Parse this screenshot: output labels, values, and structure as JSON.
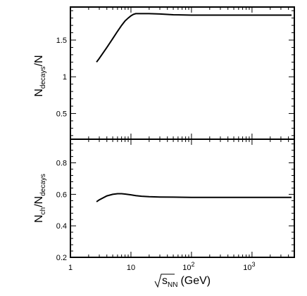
{
  "chart_data": [
    {
      "type": "line",
      "panel": "top",
      "xscale": "log",
      "xlim": [
        1,
        5000
      ],
      "ylim": [
        0.15,
        1.95
      ],
      "ylabel": {
        "main": "N",
        "sub1": "decays",
        "rest": "/N"
      },
      "yticks": [
        0.5,
        1,
        1.5
      ],
      "ytick_labels": [
        "0.5",
        "1",
        "1.5"
      ],
      "series": [
        {
          "x": [
            2.7,
            3,
            4,
            5,
            6,
            7,
            8,
            9,
            10,
            11,
            12,
            14,
            20,
            30,
            50,
            100,
            300,
            1000,
            4500
          ],
          "y": [
            1.2,
            1.25,
            1.4,
            1.52,
            1.62,
            1.7,
            1.76,
            1.8,
            1.83,
            1.85,
            1.86,
            1.86,
            1.86,
            1.855,
            1.845,
            1.84,
            1.84,
            1.84,
            1.84
          ]
        }
      ]
    },
    {
      "type": "line",
      "panel": "bottom",
      "xscale": "log",
      "xlim": [
        1,
        5000
      ],
      "ylim": [
        0.2,
        0.95
      ],
      "ylabel": {
        "main": "N",
        "sub1": "ch",
        "mid": "/N",
        "sub2": "decays"
      },
      "yticks": [
        0.2,
        0.4,
        0.6,
        0.8
      ],
      "ytick_labels": [
        "0.2",
        "0.4",
        "0.6",
        "0.8"
      ],
      "xlabel": {
        "main": "s",
        "sub": "NN",
        "rest": "(GeV)"
      },
      "xticks": [
        1,
        10,
        100,
        1000
      ],
      "xtick_labels": [
        {
          "base": "1",
          "exp": ""
        },
        {
          "base": "10",
          "exp": ""
        },
        {
          "base": "10",
          "exp": "2"
        },
        {
          "base": "10",
          "exp": "3"
        }
      ],
      "series": [
        {
          "x": [
            2.7,
            3,
            4,
            5,
            6,
            7,
            8,
            10,
            12,
            15,
            20,
            30,
            50,
            100,
            300,
            1000,
            4500
          ],
          "y": [
            0.553,
            0.565,
            0.59,
            0.6,
            0.604,
            0.604,
            0.602,
            0.597,
            0.592,
            0.588,
            0.585,
            0.583,
            0.582,
            0.581,
            0.581,
            0.581,
            0.581
          ]
        }
      ]
    }
  ]
}
